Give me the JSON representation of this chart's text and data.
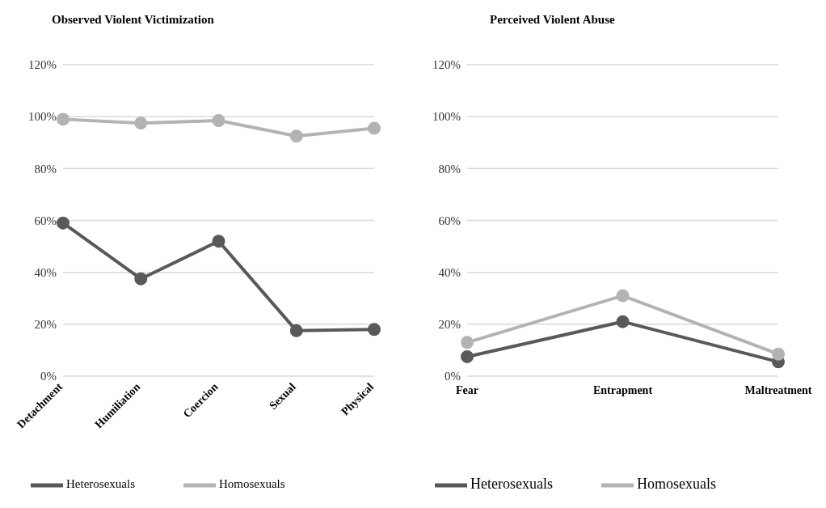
{
  "chart_data": [
    {
      "type": "line",
      "title": "Observed Violent Victimization",
      "categories": [
        "Detachment",
        "Humiliation",
        "Coercion",
        "Sexual",
        "Physical"
      ],
      "series": [
        {
          "name": "Heterosexuals",
          "color": "#595959",
          "values": [
            59,
            37.5,
            52,
            17.5,
            18
          ]
        },
        {
          "name": "Homosexuals",
          "color": "#b3b3b3",
          "values": [
            99,
            97.5,
            98.5,
            92.5,
            95.5
          ]
        }
      ],
      "ylim": [
        0,
        120
      ],
      "yticks": [
        {
          "value": 0,
          "label": "0%"
        },
        {
          "value": 20,
          "label": "20%"
        },
        {
          "value": 40,
          "label": "40%"
        },
        {
          "value": 60,
          "label": "60%"
        },
        {
          "value": 80,
          "label": "80%"
        },
        {
          "value": 100,
          "label": "100%"
        },
        {
          "value": 120,
          "label": "120%"
        }
      ],
      "grid": "y",
      "legend": "bottom",
      "marker": "circle"
    },
    {
      "type": "line",
      "title": "Perceived Violent Abuse",
      "categories": [
        "Fear",
        "Entrapment",
        "Maltreatment"
      ],
      "series": [
        {
          "name": "Heterosexuals",
          "color": "#595959",
          "values": [
            7.5,
            21,
            5.5
          ]
        },
        {
          "name": "Homosexuals",
          "color": "#b3b3b3",
          "values": [
            13,
            31,
            8.5
          ]
        }
      ],
      "ylim": [
        0,
        120
      ],
      "yticks": [
        {
          "value": 0,
          "label": "0%"
        },
        {
          "value": 20,
          "label": "20%"
        },
        {
          "value": 40,
          "label": "40%"
        },
        {
          "value": 60,
          "label": "60%"
        },
        {
          "value": 80,
          "label": "80%"
        },
        {
          "value": 100,
          "label": "100%"
        },
        {
          "value": 120,
          "label": "120%"
        }
      ],
      "grid": "y",
      "legend": "bottom",
      "marker": "circle"
    }
  ]
}
